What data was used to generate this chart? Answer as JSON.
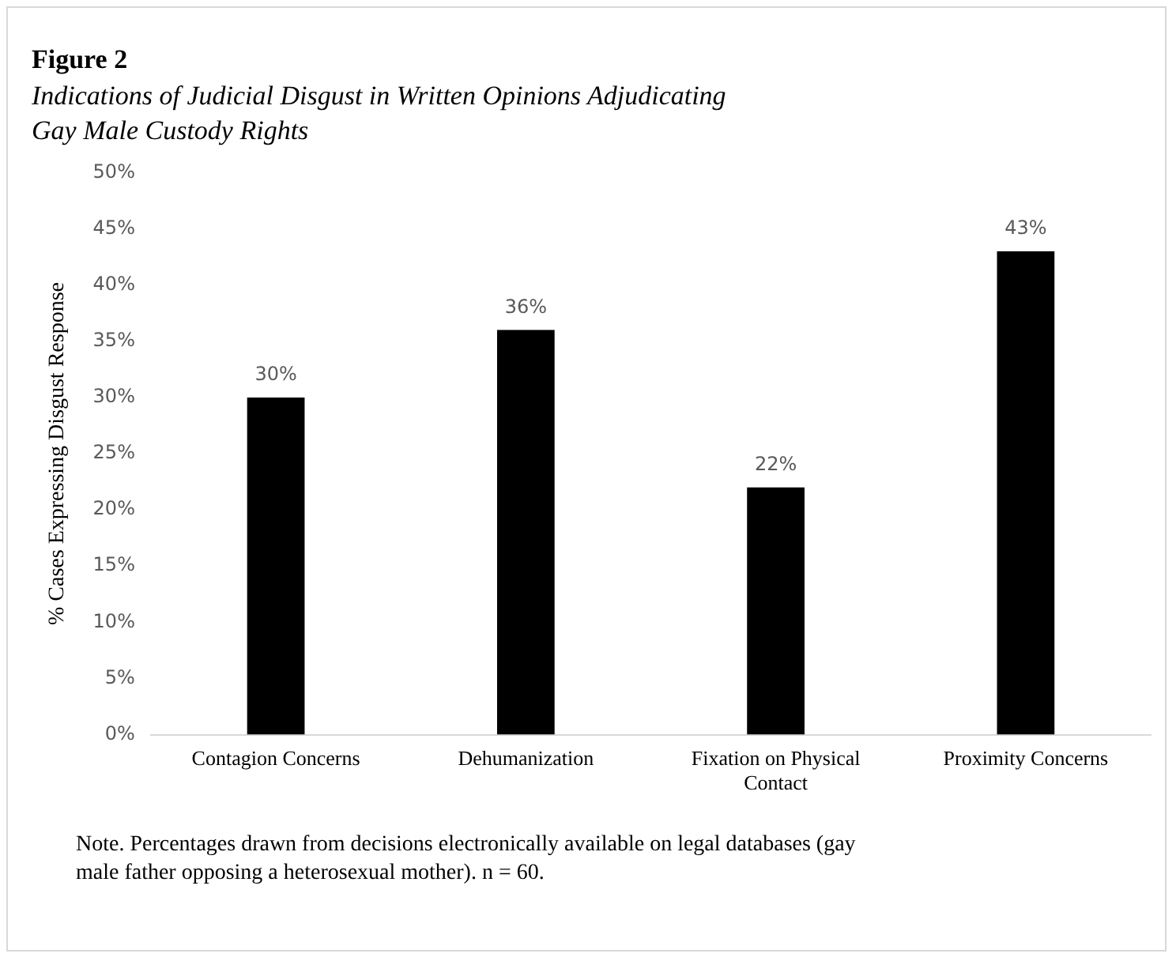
{
  "chart_data": {
    "type": "bar",
    "title": "Figure 2",
    "subtitle": "Indications of Judicial Disgust in Written Opinions Adjudicating Gay Male Custody Rights",
    "ylabel": "% Cases Expressing Disgust Response",
    "categories": [
      "Contagion Concerns",
      "Dehumanization",
      "Fixation on Physical Contact",
      "Proximity Concerns"
    ],
    "values": [
      30,
      36,
      22,
      43
    ],
    "color": "#000000",
    "value_labels": [
      "30%",
      "36%",
      "22%",
      "43%"
    ],
    "ylim": [
      0,
      50
    ],
    "yticks": [
      {
        "value": 0,
        "label": "0%"
      },
      {
        "value": 5,
        "label": "5%"
      },
      {
        "value": 10,
        "label": "10%"
      },
      {
        "value": 15,
        "label": "15%"
      },
      {
        "value": 20,
        "label": "20%"
      },
      {
        "value": 25,
        "label": "25%"
      },
      {
        "value": 30,
        "label": "30%"
      },
      {
        "value": 35,
        "label": "35%"
      },
      {
        "value": 40,
        "label": "40%"
      },
      {
        "value": 45,
        "label": "45%"
      },
      {
        "value": 50,
        "label": "50%"
      }
    ],
    "grid": false,
    "legend": false,
    "annotations": [
      "Note. Percentages drawn from decisions electronically available on legal databases (gay male father opposing a heterosexual mother). n = 60."
    ]
  }
}
